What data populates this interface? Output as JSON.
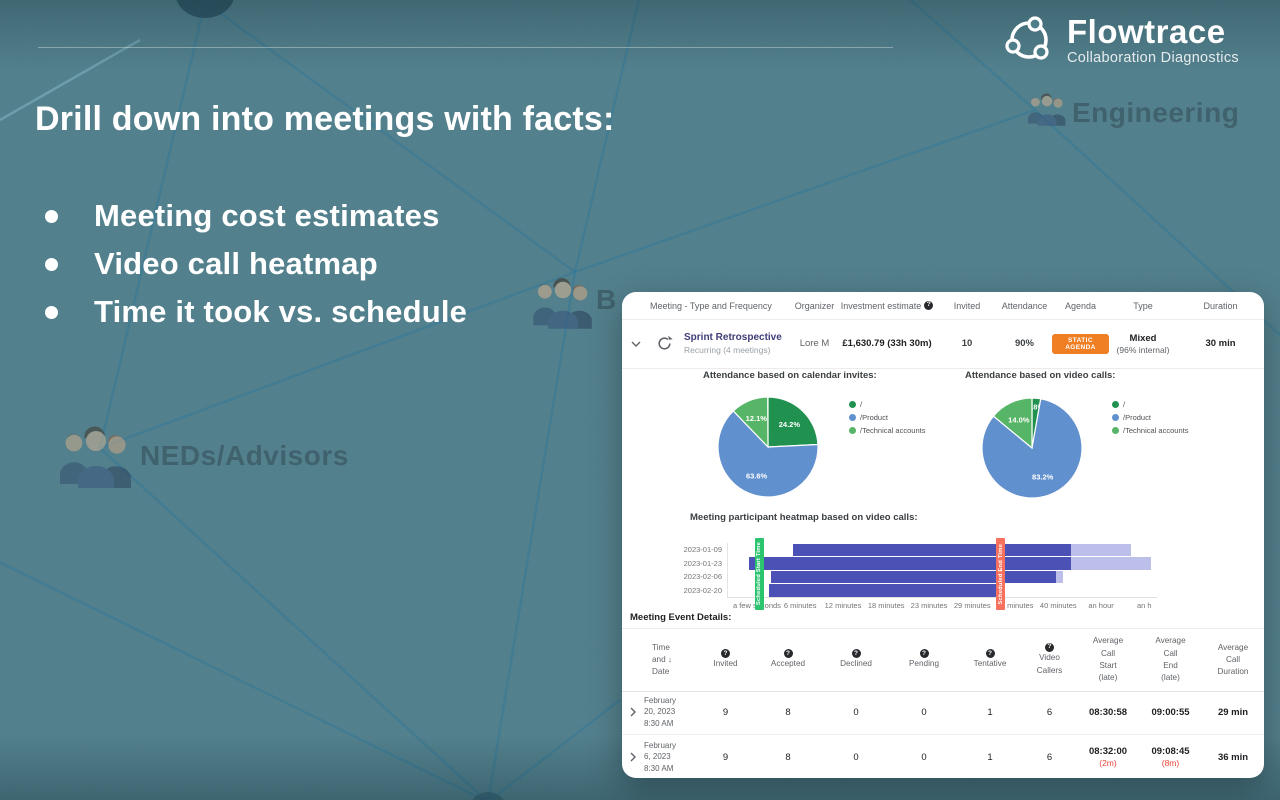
{
  "slide": {
    "heading": "Drill down into meetings with facts:",
    "bullets": [
      "Meeting cost estimates",
      "Video call heatmap",
      "Time it took vs. schedule"
    ],
    "logo": {
      "name": "Flowtrace",
      "tagline": "Collaboration Diagnostics"
    },
    "background_labels": {
      "engineering": "Engineering",
      "neds": "NEDs/Advisors",
      "partial": "B"
    },
    "colors": {
      "background": "#4f7e8b",
      "network_line": "#2d7598"
    }
  },
  "icons": {
    "help": "?",
    "sort_desc": "↓"
  },
  "dashboard": {
    "meetings_table": {
      "columns": [
        "Meeting - Type and Frequency",
        "Organizer",
        "Investment estimate",
        "Invited",
        "Attendance",
        "Agenda",
        "Type",
        "Duration"
      ],
      "row": {
        "name": "Sprint Retrospective",
        "frequency": "Recurring (4 meetings)",
        "organizer": "Lore M",
        "investment": "£1,630.79 (33h 30m)",
        "invited": "10",
        "attendance": "90%",
        "agenda_badge": "STATIC AGENDA",
        "type": "Mixed",
        "type_detail": "(96% internal)",
        "duration": "30 min",
        "badge_color": "#f07f24",
        "name_color": "#3f3c77"
      }
    },
    "event_details": {
      "section_label": "Meeting Event Details:",
      "columns": [
        {
          "id": "time",
          "lines": [
            "Time",
            "and",
            "Date"
          ],
          "sort": true
        },
        {
          "id": "invited",
          "lines": [
            "Invited"
          ],
          "help": true
        },
        {
          "id": "accepted",
          "lines": [
            "Accepted"
          ],
          "help": true
        },
        {
          "id": "declined",
          "lines": [
            "Declined"
          ],
          "help": true
        },
        {
          "id": "pending",
          "lines": [
            "Pending"
          ],
          "help": true
        },
        {
          "id": "tentative",
          "lines": [
            "Tentative"
          ],
          "help": true
        },
        {
          "id": "video_callers",
          "lines": [
            "Video",
            "Callers"
          ],
          "help": true
        },
        {
          "id": "avg_start",
          "lines": [
            "Average",
            "Call",
            "Start",
            "(late)"
          ]
        },
        {
          "id": "avg_end",
          "lines": [
            "Average",
            "Call",
            "End",
            "(late)"
          ]
        },
        {
          "id": "avg_duration",
          "lines": [
            "Average",
            "Call",
            "Duration"
          ]
        }
      ],
      "rows": [
        {
          "date": [
            "February",
            "20, 2023",
            "8:30 AM"
          ],
          "invited": "9",
          "accepted": "8",
          "declined": "0",
          "pending": "0",
          "tentative": "1",
          "video_callers": "6",
          "avg_start": "08:30:58",
          "start_late": "",
          "avg_end": "09:00:55",
          "end_late": "",
          "duration": "29 min"
        },
        {
          "date": [
            "February",
            "6, 2023",
            "8:30 AM"
          ],
          "invited": "9",
          "accepted": "8",
          "declined": "0",
          "pending": "0",
          "tentative": "1",
          "video_callers": "6",
          "avg_start": "08:32:00",
          "start_late": "(2m)",
          "avg_end": "09:08:45",
          "end_late": "(8m)",
          "duration": "36 min"
        }
      ]
    }
  },
  "chart_data": [
    {
      "type": "pie",
      "title": "Attendance based on calendar invites:",
      "labels": [
        "/",
        "/Product",
        "/Technical accounts"
      ],
      "values": [
        24.2,
        63.6,
        12.1
      ],
      "value_labels": [
        "24.2%",
        "63.6%",
        "12.1%"
      ],
      "colors": [
        "#21914f",
        "#6090ce",
        "#57b567"
      ],
      "legend_position": "right"
    },
    {
      "type": "pie",
      "title": "Attendance based on video calls:",
      "labels": [
        "/",
        "/Product",
        "/Technical accounts"
      ],
      "values": [
        2.8,
        83.2,
        14.0
      ],
      "value_labels": [
        "2.8%",
        "83.2%",
        "14.0%"
      ],
      "colors": [
        "#21914f",
        "#6090ce",
        "#57b567"
      ],
      "legend_position": "right"
    },
    {
      "type": "heatmap",
      "title": "Meeting participant heatmap based on video calls:",
      "rows": [
        "2023-01-09",
        "2023-01-23",
        "2023-02-06",
        "2023-02-20"
      ],
      "x_ticks": [
        "a few seconds",
        "6 minutes",
        "12 minutes",
        "18 minutes",
        "23 minutes",
        "29 minutes",
        "34 minutes",
        "40 minutes",
        "an hour",
        "an h"
      ],
      "tick_pcts": [
        7,
        17.1,
        27.1,
        37.2,
        47.2,
        57.3,
        67.3,
        77.4,
        87.4,
        97.5
      ],
      "bars": [
        {
          "dark": [
            15.2,
            80.1
          ],
          "light": [
            80.1,
            94.2
          ]
        },
        {
          "dark": [
            4.9,
            80.1
          ],
          "light": [
            80.1,
            98.8
          ]
        },
        {
          "dark": [
            10.0,
            76.6
          ],
          "light": [
            76.6,
            78.2
          ]
        },
        {
          "dark": [
            9.6,
            63.8
          ],
          "light": null
        }
      ],
      "colors": {
        "dark": "#4b51b5",
        "light": "#bcbfe9"
      },
      "overlays": [
        {
          "label": "Scheduled Start Time",
          "color": "#2dc470",
          "x_pct": 6.5
        },
        {
          "label": "Scheduled End Time",
          "color": "#f8705e",
          "x_pct": 62.9
        }
      ]
    }
  ]
}
